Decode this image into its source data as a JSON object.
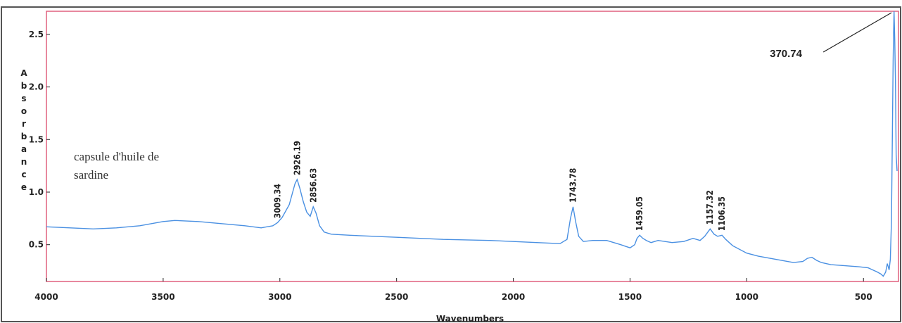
{
  "chart_data": {
    "type": "line",
    "xlabel": "Wavenumbers",
    "ylabel": "Absorbance",
    "xlim": [
      4000,
      350
    ],
    "ylim": [
      0.15,
      2.72
    ],
    "x_ticks": [
      "4000",
      "3500",
      "3000",
      "2500",
      "2000",
      "1500",
      "1000",
      "500"
    ],
    "y_ticks": [
      "0.5",
      "1.0",
      "1.5",
      "2.0",
      "2.5"
    ],
    "annotation_lines": [
      "capsule d'huile de",
      "sardine"
    ],
    "series": [
      {
        "color": "#4a90e2",
        "x": [
          4000,
          3800,
          3700,
          3600,
          3500,
          3450,
          3350,
          3250,
          3150,
          3080,
          3030,
          3010,
          2990,
          2960,
          2945,
          2935,
          2926,
          2915,
          2900,
          2885,
          2870,
          2857,
          2845,
          2830,
          2810,
          2780,
          2700,
          2500,
          2300,
          2100,
          1900,
          1800,
          1770,
          1755,
          1744,
          1733,
          1720,
          1700,
          1660,
          1600,
          1540,
          1500,
          1480,
          1470,
          1459,
          1445,
          1430,
          1410,
          1380,
          1320,
          1270,
          1230,
          1200,
          1180,
          1157,
          1140,
          1125,
          1106,
          1090,
          1060,
          1000,
          950,
          900,
          850,
          800,
          760,
          740,
          721,
          700,
          680,
          640,
          580,
          520,
          480,
          460,
          440,
          425,
          415,
          405,
          398,
          390,
          385,
          380,
          376,
          373,
          371,
          369,
          366,
          363,
          360,
          356
        ],
        "y": [
          0.67,
          0.65,
          0.66,
          0.68,
          0.72,
          0.73,
          0.72,
          0.7,
          0.68,
          0.66,
          0.68,
          0.71,
          0.76,
          0.88,
          1.0,
          1.08,
          1.12,
          1.04,
          0.91,
          0.81,
          0.77,
          0.86,
          0.8,
          0.68,
          0.62,
          0.6,
          0.59,
          0.57,
          0.55,
          0.54,
          0.52,
          0.51,
          0.55,
          0.75,
          0.86,
          0.72,
          0.58,
          0.53,
          0.54,
          0.54,
          0.5,
          0.47,
          0.5,
          0.56,
          0.59,
          0.56,
          0.54,
          0.52,
          0.54,
          0.52,
          0.53,
          0.56,
          0.54,
          0.58,
          0.65,
          0.6,
          0.58,
          0.59,
          0.55,
          0.49,
          0.42,
          0.39,
          0.37,
          0.35,
          0.33,
          0.34,
          0.37,
          0.38,
          0.35,
          0.33,
          0.31,
          0.3,
          0.29,
          0.28,
          0.26,
          0.24,
          0.22,
          0.2,
          0.24,
          0.32,
          0.26,
          0.36,
          0.72,
          1.6,
          2.25,
          2.5,
          2.72,
          2.45,
          2.05,
          1.35,
          1.2
        ]
      }
    ],
    "peak_labels": [
      {
        "x": 3009.34,
        "y": 0.71,
        "text": "3009.34"
      },
      {
        "x": 2926.19,
        "y": 1.12,
        "text": "2926.19"
      },
      {
        "x": 2856.63,
        "y": 0.86,
        "text": "2856.63"
      },
      {
        "x": 1743.78,
        "y": 0.86,
        "text": "1743.78"
      },
      {
        "x": 1459.05,
        "y": 0.59,
        "text": "1459.05"
      },
      {
        "x": 1157.32,
        "y": 0.65,
        "text": "1157.32"
      },
      {
        "x": 1106.35,
        "y": 0.59,
        "text": "1106.35"
      }
    ],
    "callout": {
      "x": 370.74,
      "y": 2.72,
      "text": "370.74"
    }
  }
}
